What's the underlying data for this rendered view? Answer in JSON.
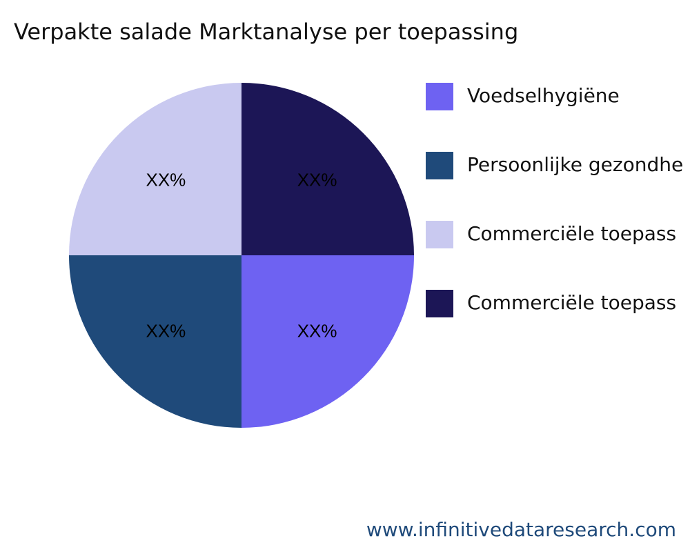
{
  "chart_data": {
    "type": "pie",
    "title": "Verpakte salade Marktanalyse per toepassing",
    "categories": [
      "Voedselhygiëne",
      "Persoonlijke gezondhe",
      "Commerciële toepass",
      "Commerciële toepass"
    ],
    "values": [
      25,
      25,
      25,
      25
    ],
    "value_labels": [
      "XX%",
      "XX%",
      "XX%",
      "XX%"
    ],
    "colors": [
      "#6e62f2",
      "#1f4a7a",
      "#c9c9f0",
      "#1c1656"
    ],
    "legend": "right",
    "source": "www.infinitivedataresearch.com"
  }
}
